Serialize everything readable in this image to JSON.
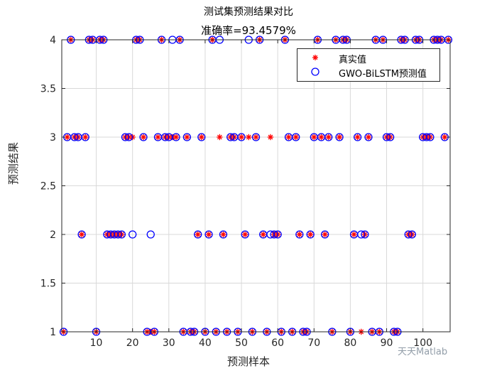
{
  "chart_data": {
    "type": "scatter",
    "title": "测试集预测结果对比",
    "subtitle": "准确率=93.4579%",
    "xlabel": "预测样本",
    "ylabel": "预测结果",
    "xlim": [
      0.5,
      107.5
    ],
    "ylim": [
      1,
      4
    ],
    "x_ticks": [
      "10",
      "20",
      "30",
      "40",
      "50",
      "60",
      "70",
      "80",
      "90",
      "100"
    ],
    "y_ticks": [
      "1",
      "1.5",
      "2",
      "2.5",
      "3",
      "3.5",
      "4"
    ],
    "grid": true,
    "legend_position": "top-right",
    "x": [
      1,
      2,
      3,
      4,
      5,
      6,
      7,
      8,
      9,
      10,
      11,
      12,
      13,
      14,
      15,
      16,
      17,
      18,
      19,
      20,
      21,
      22,
      23,
      24,
      25,
      26,
      27,
      28,
      29,
      30,
      31,
      32,
      33,
      34,
      35,
      36,
      37,
      38,
      39,
      40,
      41,
      42,
      43,
      44,
      45,
      46,
      47,
      48,
      49,
      50,
      51,
      52,
      53,
      54,
      55,
      56,
      57,
      58,
      59,
      60,
      61,
      62,
      63,
      64,
      65,
      66,
      67,
      68,
      69,
      70,
      71,
      72,
      73,
      74,
      75,
      76,
      77,
      78,
      79,
      80,
      81,
      82,
      83,
      84,
      85,
      86,
      87,
      88,
      89,
      90,
      91,
      92,
      93,
      94,
      95,
      96,
      97,
      98,
      99,
      100,
      101,
      102,
      103,
      104,
      105,
      106,
      107
    ],
    "series": [
      {
        "name": "真实值",
        "color": "#ff0000",
        "marker": "asterisk",
        "values": [
          1,
          3,
          4,
          3,
          3,
          2,
          3,
          4,
          4,
          1,
          4,
          4,
          2,
          2,
          2,
          2,
          2,
          3,
          3,
          3,
          4,
          4,
          3,
          1,
          1,
          1,
          3,
          4,
          3,
          3,
          3,
          3,
          4,
          1,
          3,
          1,
          1,
          2,
          3,
          1,
          2,
          4,
          1,
          3,
          2,
          1,
          3,
          3,
          1,
          3,
          2,
          3,
          1,
          3,
          4,
          2,
          1,
          3,
          2,
          2,
          1,
          4,
          3,
          1,
          3,
          2,
          1,
          1,
          2,
          3,
          4,
          3,
          2,
          3,
          1,
          4,
          3,
          4,
          4,
          1,
          2,
          3,
          1,
          2,
          3,
          1,
          4,
          1,
          4,
          3,
          3,
          1,
          1,
          4,
          4,
          2,
          2,
          4,
          4,
          3,
          3,
          3,
          4,
          4,
          4,
          3,
          4
        ]
      },
      {
        "name": "GWO-BiLSTM预测值",
        "color": "#0000ff",
        "marker": "circle",
        "values": [
          1,
          3,
          4,
          3,
          3,
          2,
          3,
          4,
          4,
          1,
          4,
          4,
          2,
          2,
          2,
          2,
          2,
          3,
          3,
          2,
          4,
          4,
          3,
          1,
          2,
          1,
          3,
          4,
          3,
          3,
          4,
          3,
          4,
          1,
          3,
          1,
          1,
          2,
          3,
          1,
          2,
          4,
          1,
          4,
          2,
          1,
          3,
          3,
          1,
          3,
          2,
          4,
          1,
          3,
          4,
          2,
          1,
          2,
          2,
          2,
          1,
          4,
          3,
          1,
          3,
          2,
          1,
          1,
          2,
          3,
          4,
          3,
          2,
          3,
          1,
          4,
          3,
          4,
          4,
          1,
          2,
          3,
          2,
          2,
          3,
          1,
          4,
          1,
          4,
          3,
          3,
          1,
          1,
          4,
          4,
          2,
          2,
          4,
          4,
          3,
          3,
          3,
          4,
          4,
          4,
          3,
          4
        ]
      }
    ]
  },
  "watermark": "天天Matlab"
}
